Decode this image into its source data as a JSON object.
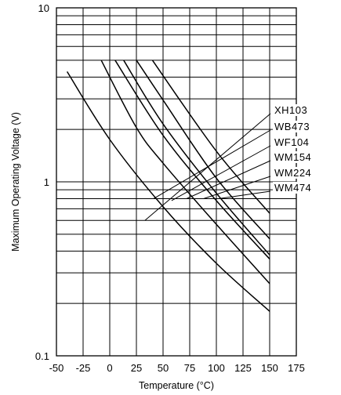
{
  "chart_data": {
    "type": "line",
    "title": "",
    "xlabel": "Temperature (°C)",
    "ylabel": "Maximum Operating Voltage (V)",
    "xlim": [
      -50,
      175
    ],
    "ylim": [
      0.1,
      10
    ],
    "yscale": "log",
    "grid": true,
    "x_ticks": [
      "-50",
      "-25",
      "0",
      "25",
      "50",
      "75",
      "100",
      "125",
      "150",
      "175"
    ],
    "y_ticks": [
      "0.1",
      "1",
      "10"
    ],
    "series_label_order": [
      "XH103",
      "WB473",
      "WF104",
      "WM154",
      "WM224",
      "WM474"
    ],
    "series": [
      {
        "points": [
          [
            -40,
            4.3
          ],
          [
            0,
            1.75
          ],
          [
            50,
            0.72
          ],
          [
            100,
            0.34
          ],
          [
            150,
            0.18
          ]
        ]
      },
      {
        "points": [
          [
            -8,
            5.0
          ],
          [
            25,
            2.05
          ],
          [
            50,
            1.28
          ],
          [
            100,
            0.57
          ],
          [
            150,
            0.26
          ]
        ]
      },
      {
        "points": [
          [
            5,
            5.0
          ],
          [
            50,
            1.85
          ],
          [
            100,
            0.78
          ],
          [
            150,
            0.36
          ]
        ]
      },
      {
        "points": [
          [
            13,
            5.0
          ],
          [
            50,
            2.15
          ],
          [
            100,
            0.86
          ],
          [
            150,
            0.38
          ]
        ]
      },
      {
        "points": [
          [
            25,
            5.0
          ],
          [
            50,
            2.95
          ],
          [
            100,
            1.05
          ],
          [
            150,
            0.47
          ]
        ]
      },
      {
        "points": [
          [
            40,
            5.0
          ],
          [
            100,
            1.5
          ],
          [
            150,
            0.66
          ]
        ]
      }
    ],
    "leader_lines": [
      {
        "label_index": 0,
        "from": [
          345,
          145
        ],
        "to": [
          33,
          0.6
        ]
      },
      {
        "label_index": 1,
        "from": [
          345,
          166
        ],
        "to": [
          41,
          0.8
        ]
      },
      {
        "label_index": 2,
        "from": [
          345,
          186
        ],
        "to": [
          58,
          0.78
        ]
      },
      {
        "label_index": 3,
        "from": [
          345,
          205
        ],
        "to": [
          72,
          0.8
        ]
      },
      {
        "label_index": 4,
        "from": [
          345,
          225
        ],
        "to": [
          88,
          0.8
        ]
      },
      {
        "label_index": 5,
        "from": [
          345,
          244
        ],
        "to": [
          102,
          0.8
        ]
      }
    ]
  }
}
